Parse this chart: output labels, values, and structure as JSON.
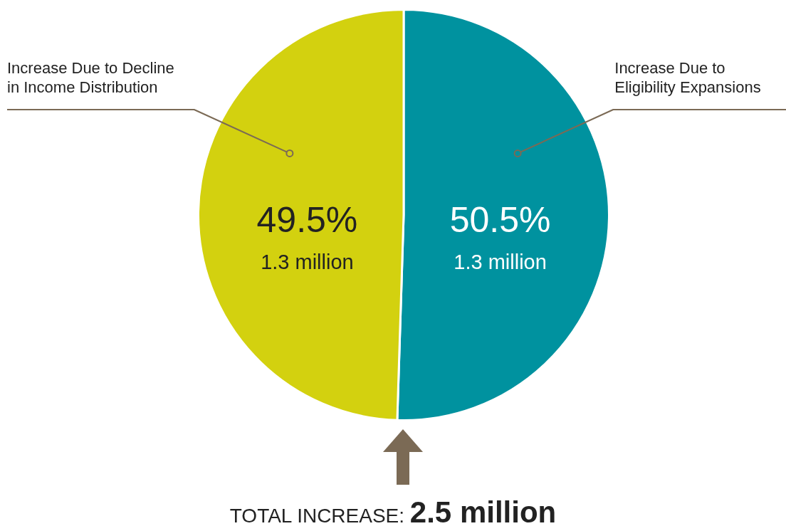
{
  "chart_data": {
    "type": "pie",
    "categories": [
      "Increase Due to Eligibility Expansions",
      "Increase Due to Decline in Income Distribution"
    ],
    "values": [
      50.5,
      49.5
    ],
    "colors": [
      "#00929f",
      "#d3d10f"
    ],
    "value_labels": [
      "50.5%",
      "49.5%"
    ],
    "legend": false,
    "annotations": [
      {
        "text": "1.3 million",
        "x": "Increase Due to Eligibility Expansions"
      },
      {
        "text": "1.3 million",
        "x": "Increase Due to Decline in Income Distribution"
      },
      "TOTAL INCREASE: 2.5 million"
    ]
  }
}
